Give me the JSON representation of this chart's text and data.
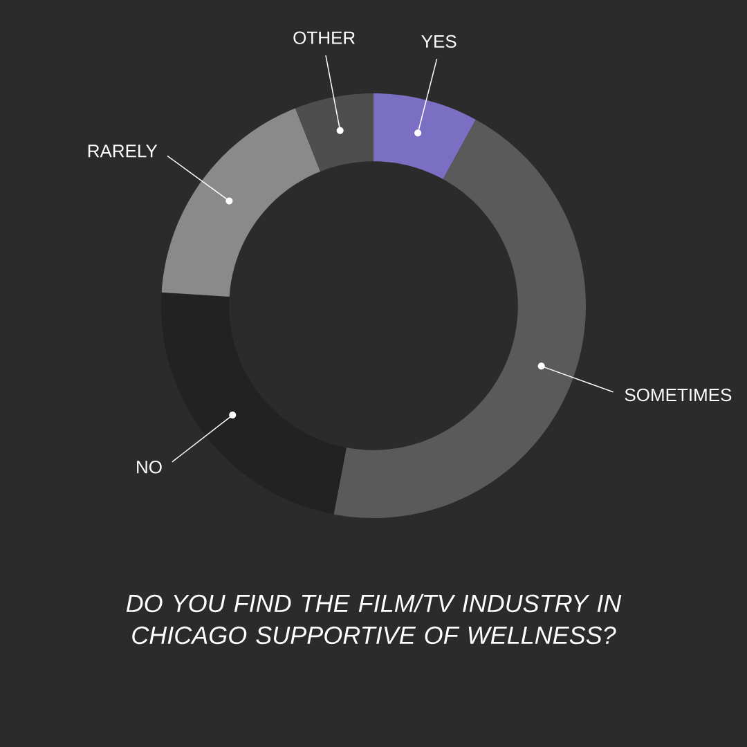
{
  "chart_data": {
    "type": "donut",
    "title": "DO YOU FIND THE FILM/TV INDUSTRY IN CHICAGO SUPPORTIVE OF WELLNESS?",
    "categories": [
      "YES",
      "SOMETIMES",
      "NO",
      "RARELY",
      "OTHER"
    ],
    "values": [
      8,
      45,
      23,
      18,
      6
    ],
    "colors": [
      "#7b6fc4",
      "#5a5a5a",
      "#222222",
      "#8a8a8a",
      "#4e4e4e"
    ]
  }
}
